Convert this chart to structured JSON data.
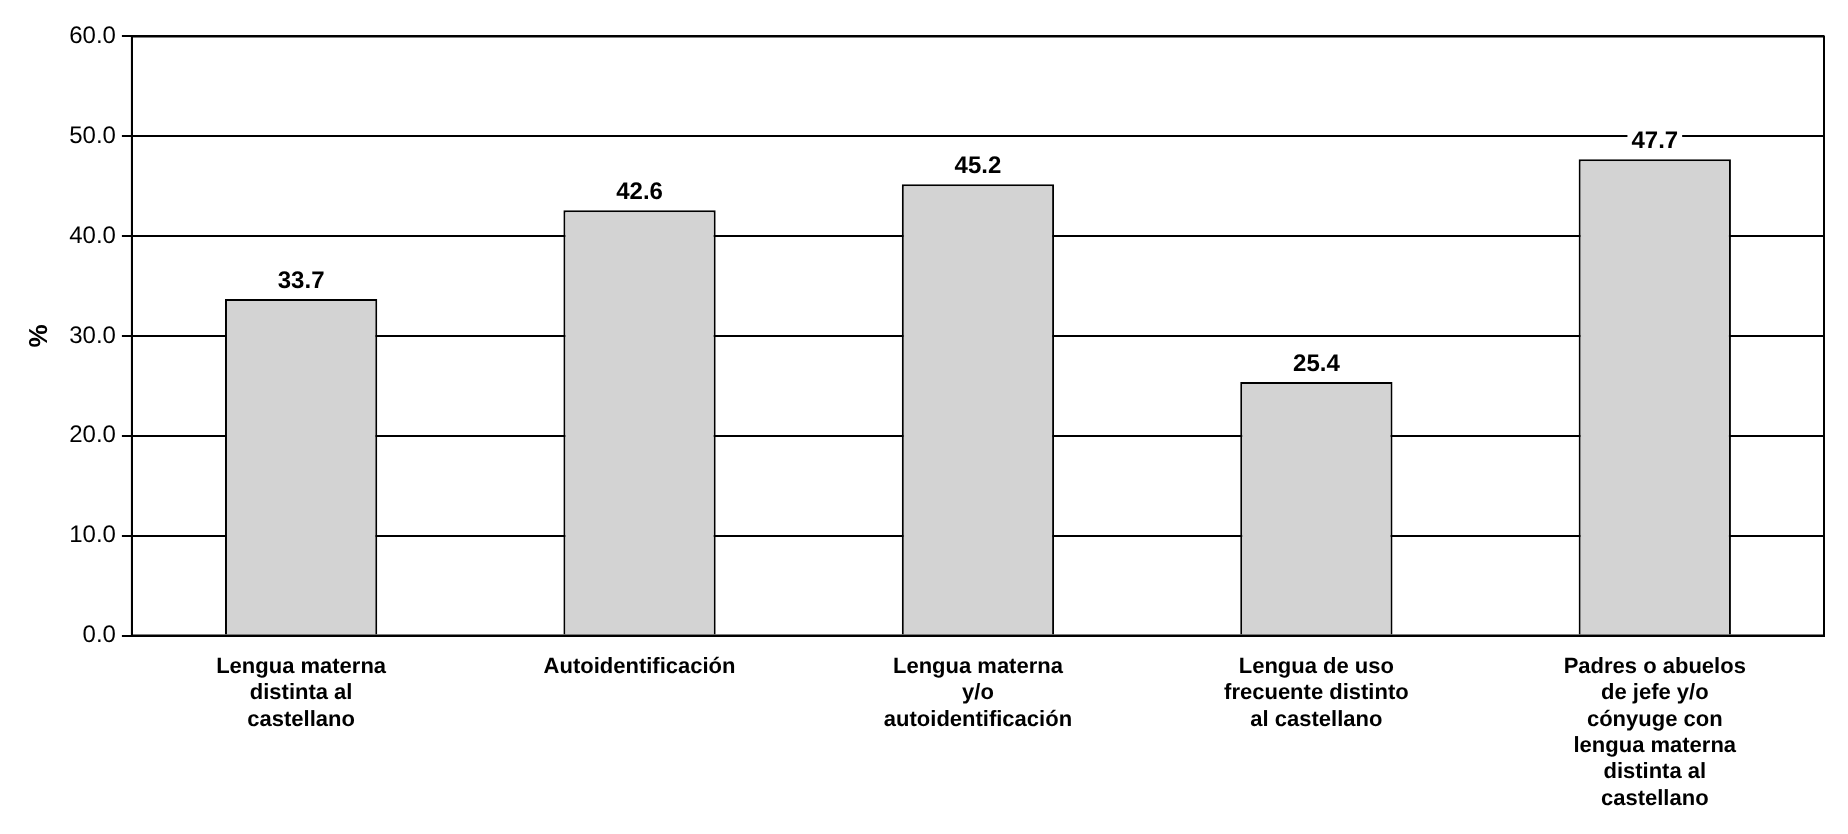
{
  "chart_data": {
    "type": "bar",
    "ylabel": "%",
    "categories": [
      "Lengua materna distinta al castellano",
      "Autoidentificación",
      "Lengua materna y/o autoidentificación",
      "Lengua de uso frecuente distinto al castellano",
      "Padres o abuelos de jefe y/o cónyuge con lengua materna distinta al castellano"
    ],
    "values": [
      33.7,
      42.6,
      45.2,
      25.4,
      47.7
    ],
    "color": "#d3d3d3",
    "ylim": [
      0,
      60
    ],
    "yticks": [
      {
        "value": 0,
        "label": "0.0"
      },
      {
        "value": 10,
        "label": "10.0"
      },
      {
        "value": 20,
        "label": "20.0"
      },
      {
        "value": 30,
        "label": "30.0"
      },
      {
        "value": 40,
        "label": "40.0"
      },
      {
        "value": 50,
        "label": "50.0"
      },
      {
        "value": 60,
        "label": "60.0"
      }
    ],
    "grid": "y",
    "legend": false,
    "data_labels": true
  }
}
